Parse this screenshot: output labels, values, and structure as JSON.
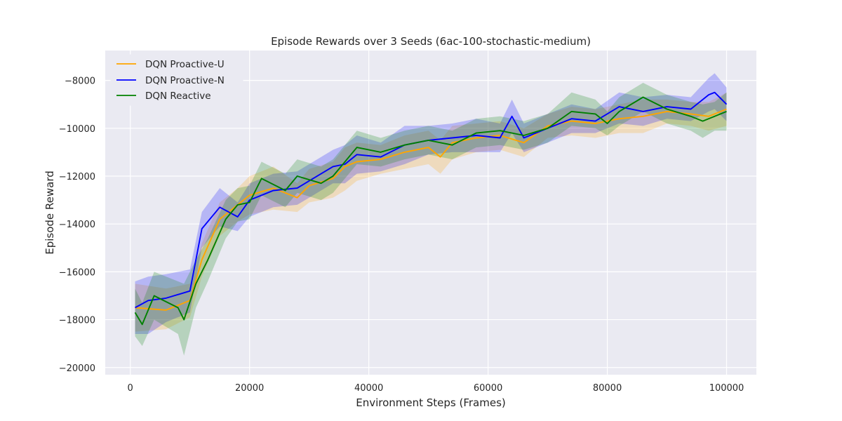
{
  "chart_data": {
    "type": "line",
    "title": "Episode Rewards over 3 Seeds (6ac-100-stochastic-medium)",
    "xlabel": "Environment Steps (Frames)",
    "ylabel": "Episode Reward",
    "xlim": [
      -4200,
      105000
    ],
    "ylim": [
      -20300,
      -6750
    ],
    "xticks": [
      0,
      20000,
      40000,
      60000,
      80000,
      100000
    ],
    "xtick_labels": [
      "0",
      "20000",
      "40000",
      "60000",
      "80000",
      "100000"
    ],
    "yticks": [
      -20000,
      -18000,
      -16000,
      -14000,
      -12000,
      -10000,
      -8000
    ],
    "ytick_labels": [
      "−20000",
      "−18000",
      "−16000",
      "−14000",
      "−12000",
      "−10000",
      "−8000"
    ],
    "grid": true,
    "legend_position": "top-left",
    "series": [
      {
        "name": "DQN Proactive-U",
        "color": "#ffa500",
        "x": [
          800,
          6000,
          10000,
          12000,
          15000,
          18000,
          20000,
          24000,
          28000,
          30000,
          34000,
          36000,
          38000,
          42000,
          46000,
          50000,
          52000,
          54000,
          58000,
          62000,
          66000,
          70000,
          74000,
          78000,
          82000,
          86000,
          90000,
          94000,
          97000,
          100000
        ],
        "y": [
          -17500,
          -17600,
          -17200,
          -15500,
          -13800,
          -13200,
          -12800,
          -12500,
          -12900,
          -12400,
          -12100,
          -11600,
          -11400,
          -11300,
          -11000,
          -10800,
          -11200,
          -10600,
          -10400,
          -10300,
          -10600,
          -9900,
          -9700,
          -9800,
          -9600,
          -9500,
          -9300,
          -9400,
          -9500,
          -9200
        ],
        "lower": [
          -18500,
          -18400,
          -17900,
          -16200,
          -14500,
          -13900,
          -13600,
          -13400,
          -13500,
          -13100,
          -12900,
          -12600,
          -12200,
          -11900,
          -11700,
          -11500,
          -11900,
          -11300,
          -11000,
          -10900,
          -11200,
          -10400,
          -10300,
          -10400,
          -10200,
          -10200,
          -9800,
          -9900,
          -10100,
          -9900
        ],
        "upper": [
          -16500,
          -16700,
          -16500,
          -14800,
          -13100,
          -12500,
          -12000,
          -11600,
          -12300,
          -11700,
          -11400,
          -10800,
          -10600,
          -10700,
          -10300,
          -10100,
          -10500,
          -9900,
          -9800,
          -9700,
          -10000,
          -9400,
          -9100,
          -9200,
          -9000,
          -8800,
          -8800,
          -8900,
          -8900,
          -8500
        ]
      },
      {
        "name": "DQN Proactive-N",
        "color": "#0000ff",
        "x": [
          800,
          3000,
          6000,
          10000,
          12000,
          15000,
          18000,
          20000,
          24000,
          28000,
          30000,
          34000,
          36000,
          38000,
          42000,
          46000,
          50000,
          54000,
          58000,
          62000,
          64000,
          66000,
          70000,
          74000,
          78000,
          82000,
          86000,
          90000,
          94000,
          97000,
          98000,
          100000
        ],
        "y": [
          -17500,
          -17200,
          -17100,
          -16800,
          -14200,
          -13300,
          -13700,
          -13000,
          -12600,
          -12500,
          -12200,
          -11600,
          -11500,
          -11100,
          -11200,
          -10700,
          -10500,
          -10400,
          -10300,
          -10400,
          -9500,
          -10400,
          -10000,
          -9600,
          -9700,
          -9100,
          -9300,
          -9100,
          -9200,
          -8600,
          -8500,
          -9000
        ],
        "lower": [
          -18600,
          -18600,
          -18100,
          -17700,
          -15000,
          -14100,
          -14300,
          -13700,
          -13300,
          -13200,
          -12900,
          -12300,
          -12300,
          -11900,
          -11800,
          -11500,
          -11100,
          -11000,
          -11000,
          -11000,
          -10200,
          -11000,
          -10600,
          -10200,
          -10200,
          -9800,
          -9900,
          -9600,
          -9700,
          -9300,
          -9200,
          -9700
        ],
        "upper": [
          -16400,
          -16200,
          -16100,
          -15900,
          -13500,
          -12500,
          -13100,
          -12300,
          -11900,
          -11800,
          -11500,
          -10900,
          -10700,
          -10300,
          -10600,
          -9900,
          -9900,
          -9800,
          -9600,
          -9800,
          -8800,
          -9800,
          -9400,
          -9000,
          -9200,
          -8500,
          -8700,
          -8600,
          -8700,
          -7900,
          -7700,
          -8300
        ]
      },
      {
        "name": "DQN Reactive",
        "color": "#008000",
        "x": [
          800,
          2000,
          4000,
          8000,
          9000,
          11000,
          13000,
          16000,
          18000,
          20000,
          22000,
          26000,
          28000,
          32000,
          34000,
          38000,
          42000,
          46000,
          50000,
          54000,
          58000,
          62000,
          66000,
          70000,
          74000,
          78000,
          80000,
          82000,
          86000,
          90000,
          94000,
          96000,
          98000,
          100000
        ],
        "y": [
          -17700,
          -18200,
          -17000,
          -17500,
          -18000,
          -16500,
          -15500,
          -13800,
          -13200,
          -13100,
          -12100,
          -12600,
          -12000,
          -12300,
          -12000,
          -10800,
          -11000,
          -10700,
          -10500,
          -10700,
          -10200,
          -10100,
          -10300,
          -10000,
          -9300,
          -9400,
          -9800,
          -9300,
          -8700,
          -9200,
          -9500,
          -9700,
          -9500,
          -9300
        ],
        "lower": [
          -18700,
          -19100,
          -18000,
          -18600,
          -19500,
          -17500,
          -16400,
          -14600,
          -13900,
          -13800,
          -12800,
          -13300,
          -12700,
          -13000,
          -12700,
          -11500,
          -11600,
          -11300,
          -11100,
          -11300,
          -10800,
          -10700,
          -10900,
          -10600,
          -9900,
          -10000,
          -10300,
          -9900,
          -9300,
          -9800,
          -10100,
          -10400,
          -10100,
          -10100
        ],
        "upper": [
          -16700,
          -17300,
          -16000,
          -16400,
          -16500,
          -15500,
          -14600,
          -13000,
          -12500,
          -12400,
          -11400,
          -11900,
          -11300,
          -11600,
          -11300,
          -10100,
          -10400,
          -10100,
          -9900,
          -10100,
          -9600,
          -9500,
          -9700,
          -9400,
          -8500,
          -8800,
          -9300,
          -8700,
          -8100,
          -8600,
          -8900,
          -9000,
          -8900,
          -8500
        ]
      }
    ]
  }
}
